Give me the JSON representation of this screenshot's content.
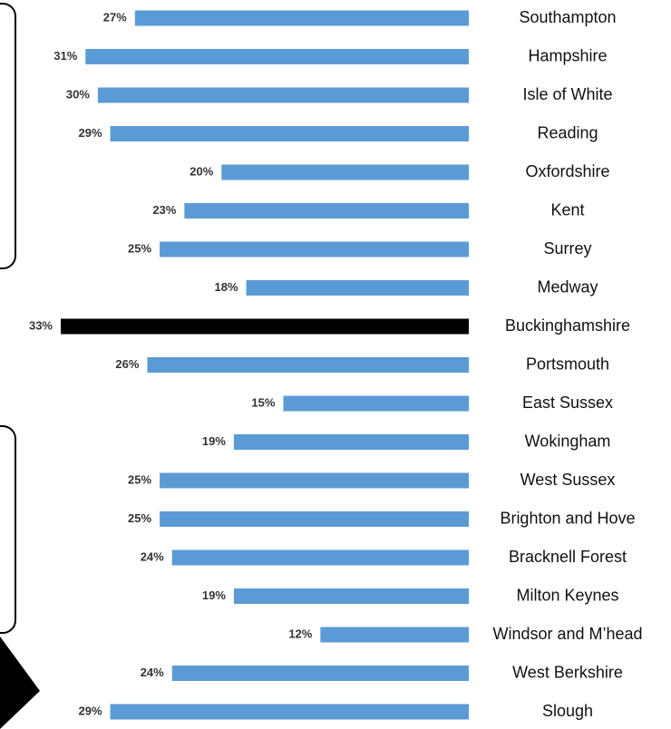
{
  "chart_data": {
    "type": "bar",
    "orientation": "horizontal-leftward",
    "categories": [
      "Southampton",
      "Hampshire",
      "Isle of White",
      "Reading",
      "Oxfordshire",
      "Kent",
      "Surrey",
      "Medway",
      "Buckinghamshire",
      "Portsmouth",
      "East Sussex",
      "Wokingham",
      "West Sussex",
      "Brighton and Hove",
      "Bracknell Forest",
      "Milton Keynes",
      "Windsor and M’head",
      "West Berkshire",
      "Slough"
    ],
    "values": [
      27,
      31,
      30,
      29,
      20,
      23,
      25,
      18,
      33,
      26,
      15,
      19,
      25,
      25,
      24,
      19,
      12,
      24,
      29
    ],
    "value_labels": [
      "27%",
      "31%",
      "30%",
      "29%",
      "20%",
      "23%",
      "25%",
      "18%",
      "33%",
      "26%",
      "15%",
      "19%",
      "25%",
      "25%",
      "24%",
      "19%",
      "12%",
      "24%",
      "29%"
    ],
    "colors": [
      "#5b9bd5",
      "#5b9bd5",
      "#5b9bd5",
      "#5b9bd5",
      "#5b9bd5",
      "#5b9bd5",
      "#5b9bd5",
      "#5b9bd5",
      "#000000",
      "#5b9bd5",
      "#5b9bd5",
      "#5b9bd5",
      "#5b9bd5",
      "#5b9bd5",
      "#5b9bd5",
      "#5b9bd5",
      "#5b9bd5",
      "#5b9bd5",
      "#5b9bd5"
    ]
  }
}
